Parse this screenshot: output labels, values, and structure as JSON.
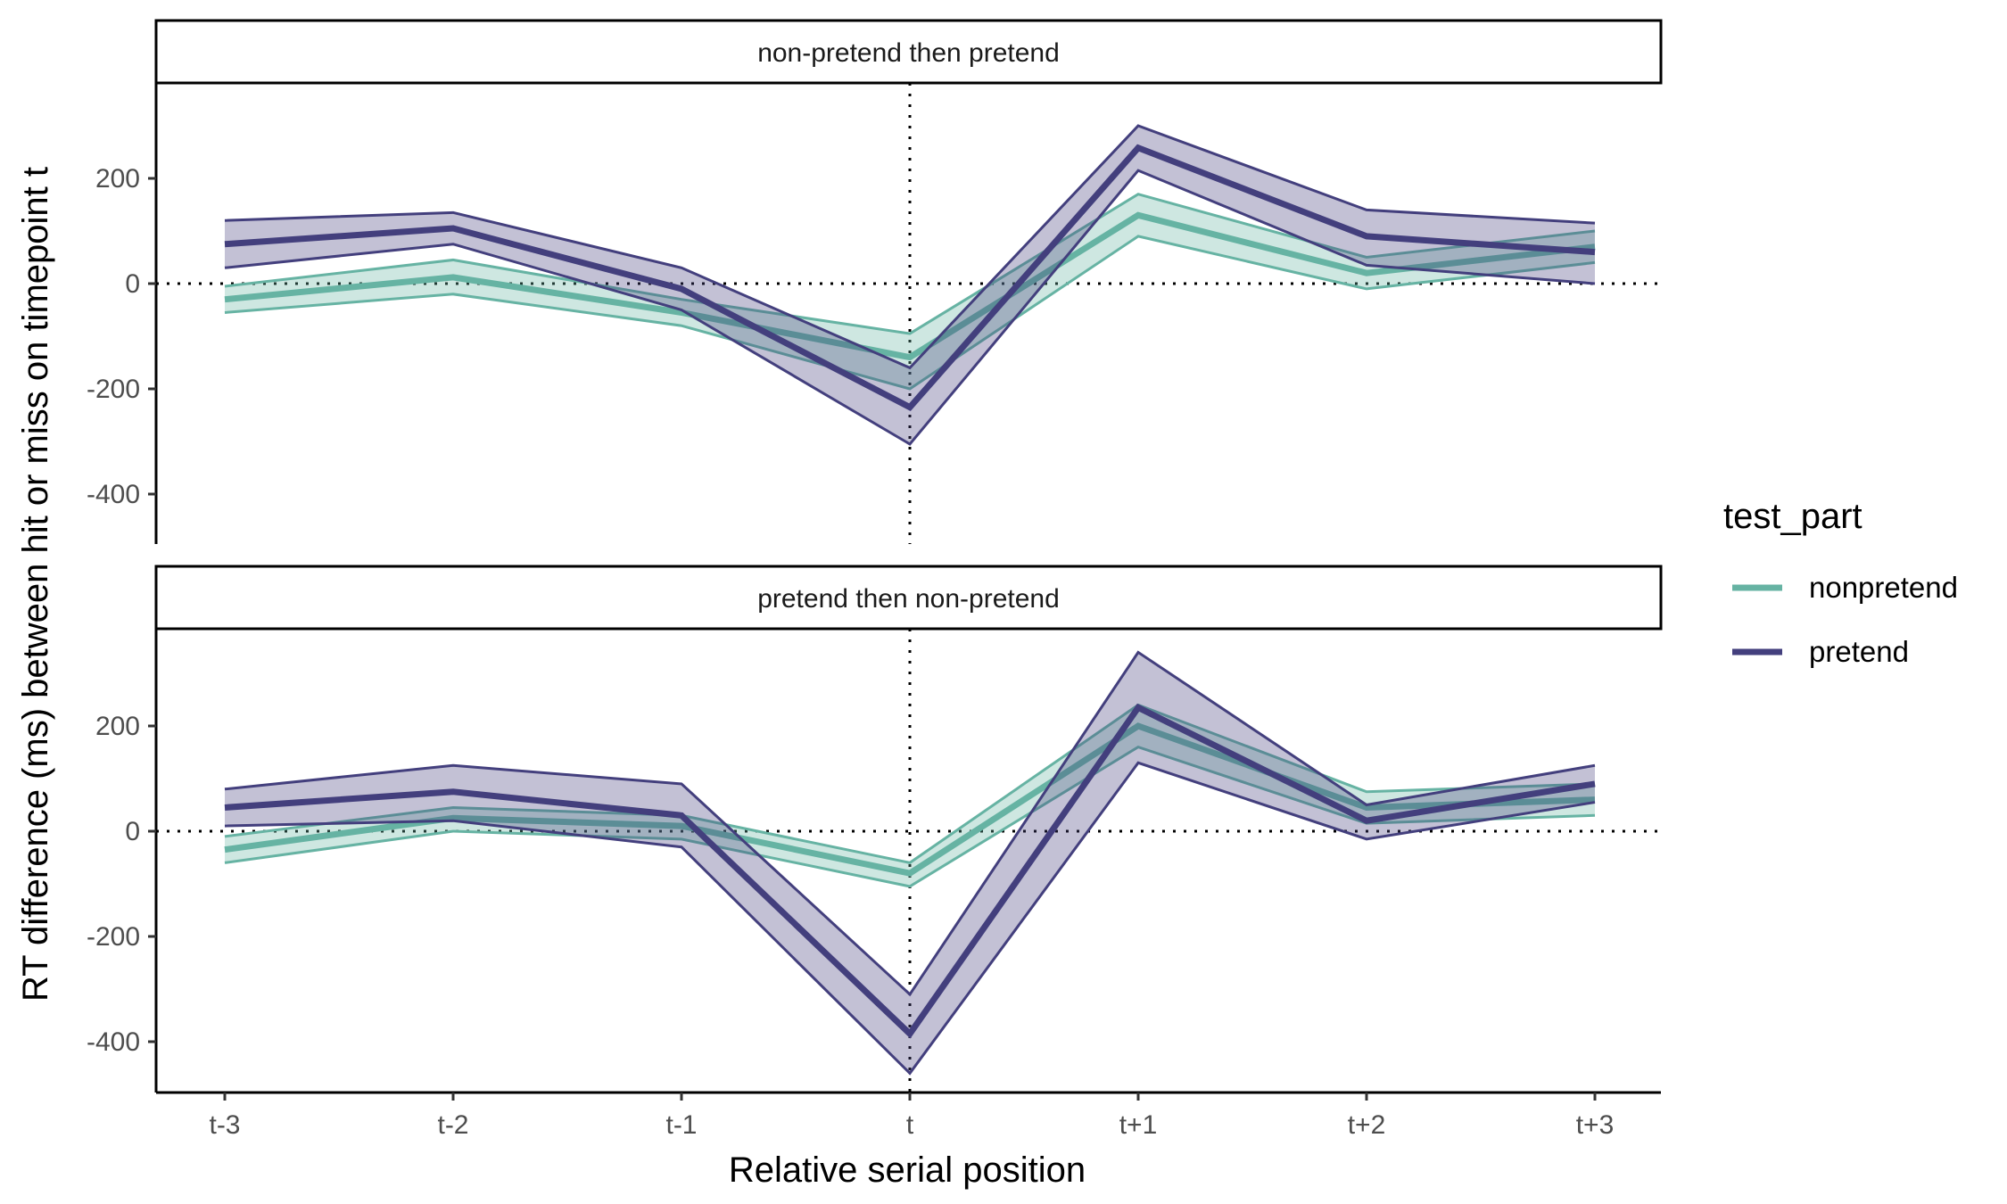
{
  "chart_data": {
    "type": "line",
    "xlabel": "Relative serial position",
    "ylabel": "RT difference (ms) between hit or miss on timepoint t",
    "x": [
      "t-3",
      "t-2",
      "t-1",
      "t",
      "t+1",
      "t+2",
      "t+3"
    ],
    "yticks": [
      -400,
      -200,
      0,
      200
    ],
    "ylim": [
      -500,
      380
    ],
    "grid": false,
    "reference_lines": {
      "y": 0,
      "x": "t",
      "style": "dotted"
    },
    "legend": {
      "title": "test_part",
      "position": "right",
      "entries": [
        "nonpretend",
        "pretend"
      ]
    },
    "colors": {
      "nonpretend": "#66B3A3",
      "pretend": "#433F7D"
    },
    "panels": [
      {
        "strip": "non-pretend then pretend",
        "series": [
          {
            "name": "nonpretend",
            "mean": [
              -30,
              12,
              -55,
              -140,
              130,
              20,
              70
            ],
            "lower": [
              -55,
              -20,
              -80,
              -200,
              90,
              -10,
              40
            ],
            "upper": [
              -5,
              45,
              -30,
              -95,
              170,
              50,
              100
            ]
          },
          {
            "name": "pretend",
            "mean": [
              75,
              105,
              -10,
              -235,
              258,
              90,
              60
            ],
            "lower": [
              30,
              75,
              -50,
              -305,
              215,
              35,
              0
            ],
            "upper": [
              120,
              135,
              30,
              -160,
              300,
              140,
              115
            ]
          }
        ]
      },
      {
        "strip": "pretend then non-pretend",
        "series": [
          {
            "name": "nonpretend",
            "mean": [
              -35,
              25,
              10,
              -80,
              200,
              45,
              60
            ],
            "lower": [
              -60,
              0,
              -15,
              -105,
              160,
              15,
              30
            ],
            "upper": [
              -10,
              45,
              30,
              -60,
              240,
              75,
              90
            ]
          },
          {
            "name": "pretend",
            "mean": [
              45,
              75,
              30,
              -385,
              235,
              20,
              90
            ],
            "lower": [
              10,
              20,
              -30,
              -460,
              130,
              -15,
              55
            ],
            "upper": [
              80,
              125,
              90,
              -310,
              340,
              50,
              125
            ]
          }
        ]
      }
    ]
  }
}
